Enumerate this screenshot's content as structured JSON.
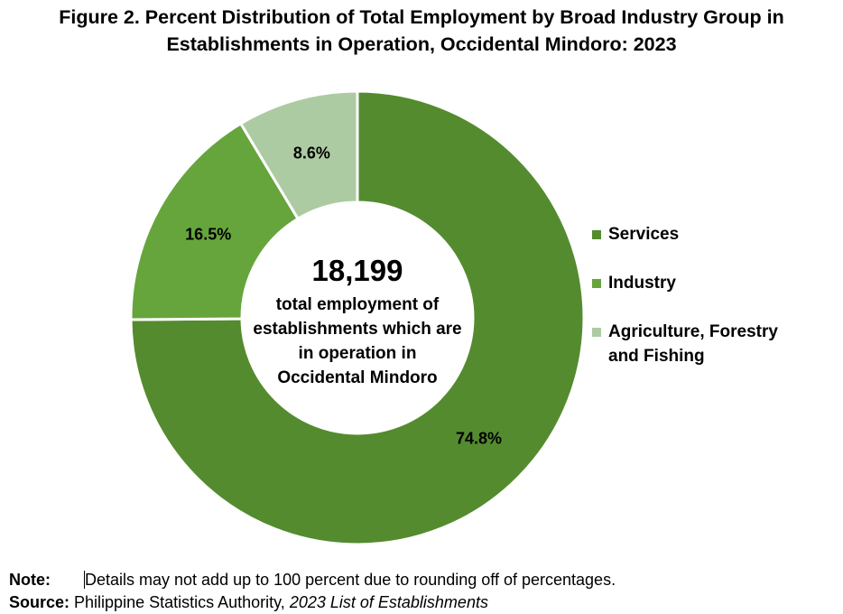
{
  "title_line1": "Figure 2. Percent Distribution of Total Employment by Broad Industry Group in",
  "title_line2": "Establishments in Operation, Occidental Mindoro: 2023",
  "center": {
    "value": "18,199",
    "lines": [
      "total employment of",
      "establishments which are",
      "in operation in",
      "Occidental Mindoro"
    ]
  },
  "legend": [
    {
      "label_lines": [
        "Services"
      ],
      "color": "#548b2f"
    },
    {
      "label_lines": [
        "Industry"
      ],
      "color": "#66a53b"
    },
    {
      "label_lines": [
        "Agriculture, Forestry",
        "and Fishing"
      ],
      "color": "#adcba2"
    }
  ],
  "footer": {
    "note_label": "Note:",
    "note_text": "Details may not add up to 100 percent due to rounding off of percentages.",
    "source_label": "Source:",
    "source_org": "Philippine Statistics Authority,",
    "source_title": "2023 List of Establishments"
  },
  "chart_data": {
    "type": "pie",
    "style": "donut",
    "title": "Figure 2. Percent Distribution of Total Employment by Broad Industry Group in Establishments in Operation, Occidental Mindoro: 2023",
    "categories": [
      "Services",
      "Industry",
      "Agriculture, Forestry and Fishing"
    ],
    "values": [
      74.8,
      16.5,
      8.6
    ],
    "labels": [
      "74.8%",
      "16.5%",
      "8.6%"
    ],
    "colors": [
      "#548b2f",
      "#66a53b",
      "#adcba2"
    ],
    "start": "12 o'clock, clockwise",
    "legend_position": "right",
    "center_total": "18,199"
  }
}
